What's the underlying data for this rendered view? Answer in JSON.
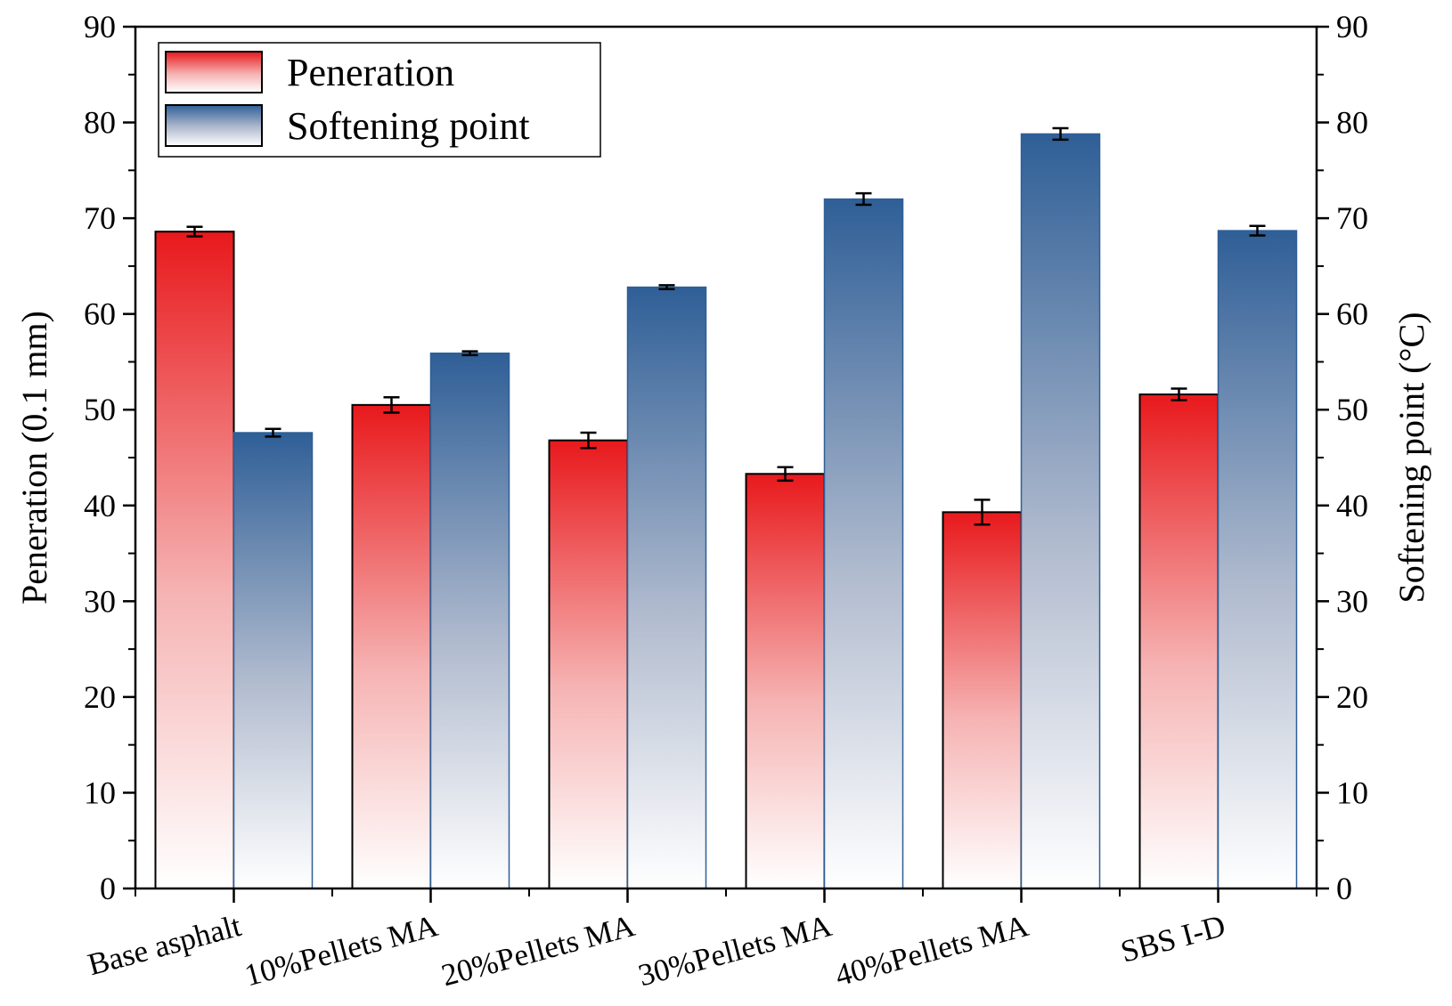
{
  "chart_data": {
    "type": "bar",
    "categories": [
      "Base asphalt",
      "10%Pellets MA",
      "20%Pellets MA",
      "30%Pellets MA",
      "40%Pellets MA",
      "SBS I-D"
    ],
    "series": [
      {
        "name": "Peneration",
        "axis": "left",
        "values": [
          68.6,
          50.5,
          46.8,
          43.3,
          39.3,
          51.6
        ],
        "errors": [
          0.5,
          0.8,
          0.8,
          0.7,
          1.3,
          0.6
        ],
        "color": "#e8191c"
      },
      {
        "name": "Softening point",
        "axis": "right",
        "values": [
          47.6,
          55.9,
          62.8,
          72.0,
          78.8,
          68.7
        ],
        "errors": [
          0.4,
          0.2,
          0.2,
          0.6,
          0.6,
          0.5
        ],
        "color": "#2f5f97"
      }
    ],
    "ylabel": "Peneration (0.1 mm)",
    "y2label": "Softening point (°C)",
    "ylim": [
      0,
      90
    ],
    "y2lim": [
      0,
      90
    ],
    "yticks": [
      "0",
      "10",
      "20",
      "30",
      "40",
      "50",
      "60",
      "70",
      "80",
      "90"
    ],
    "y2ticks": [
      "0",
      "10",
      "20",
      "30",
      "40",
      "50",
      "60",
      "70",
      "80",
      "90"
    ],
    "legend_position": "top-left",
    "grid": false
  }
}
